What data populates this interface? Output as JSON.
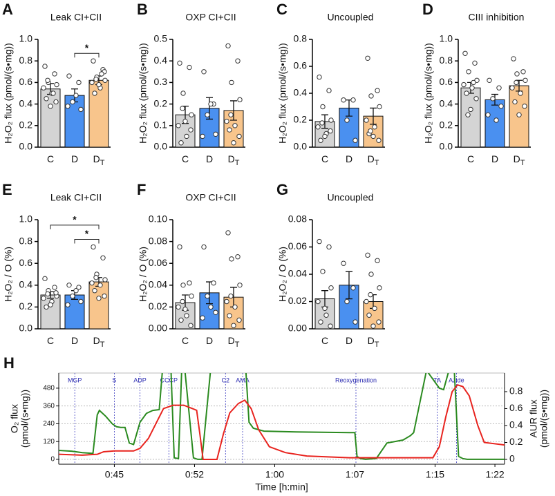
{
  "chart_data": [
    {
      "type": "bar",
      "panel": "A",
      "title": "Leak CI+CII",
      "ylabel": "H₂O₂ flux (pmol/(s•mg))",
      "categories": [
        "C",
        "D",
        "DT"
      ],
      "colors": [
        "#d4d4d4",
        "#4a90f0",
        "#f8c58c"
      ],
      "values": [
        0.54,
        0.48,
        0.62
      ],
      "errors": [
        0.05,
        0.06,
        0.04
      ],
      "points": [
        [
          0.75,
          0.68,
          0.6,
          0.58,
          0.55,
          0.5,
          0.45,
          0.42,
          0.38,
          0.62,
          0.5
        ],
        [
          0.66,
          0.6,
          0.42,
          0.35,
          0.38,
          0.48
        ],
        [
          0.8,
          0.72,
          0.65,
          0.62,
          0.6,
          0.55,
          0.5,
          0.7,
          0.58,
          0.63,
          0.68
        ]
      ],
      "comparisons": [
        {
          "pair": [
            "D",
            "DT"
          ],
          "label": "*"
        }
      ],
      "ylim": [
        0,
        1
      ],
      "yticks": [
        {
          "value": 0,
          "label": "0.0"
        },
        0.2,
        0.4,
        0.6,
        0.8,
        {
          "value": 1,
          "label": "1.0"
        }
      ]
    },
    {
      "type": "bar",
      "panel": "B",
      "title": "OXP CI+CII",
      "ylabel": "H₂O₂ flux (pmol/(s•mg))",
      "categories": [
        "C",
        "D",
        "DT"
      ],
      "colors": [
        "#d4d4d4",
        "#4a90f0",
        "#f8c58c"
      ],
      "values": [
        0.15,
        0.18,
        0.17
      ],
      "errors": [
        0.04,
        0.05,
        0.045
      ],
      "points": [
        [
          0.39,
          0.37,
          0.25,
          0.15,
          0.1,
          0.05,
          0.02,
          0.08,
          0.12,
          0.18
        ],
        [
          0.35,
          0.2,
          0.15,
          0.06,
          0.05,
          0.2
        ],
        [
          0.47,
          0.4,
          0.3,
          0.22,
          0.12,
          0.1,
          0.08,
          0.05,
          0.02,
          0.15
        ]
      ],
      "comparisons": [],
      "ylim": [
        0,
        0.5
      ],
      "yticks": [
        {
          "value": 0,
          "label": "0.0"
        },
        0.1,
        0.2,
        0.3,
        0.4,
        0.5
      ]
    },
    {
      "type": "bar",
      "panel": "C",
      "title": "Uncoupled",
      "ylabel": "H₂O₂ flux (pmol/(s•mg))",
      "categories": [
        "C",
        "D",
        "DT"
      ],
      "colors": [
        "#d4d4d4",
        "#4a90f0",
        "#f8c58c"
      ],
      "values": [
        0.19,
        0.29,
        0.23
      ],
      "errors": [
        0.05,
        0.06,
        0.06
      ],
      "points": [
        [
          0.52,
          0.42,
          0.3,
          0.2,
          0.15,
          0.1,
          0.05,
          0.12,
          0.08,
          0.18
        ],
        [
          0.35,
          0.35,
          0.2,
          0.05
        ],
        [
          0.66,
          0.42,
          0.38,
          0.3,
          0.2,
          0.15,
          0.1,
          0.05,
          0.08,
          0.12
        ]
      ],
      "comparisons": [],
      "ylim": [
        0,
        0.8
      ],
      "yticks": [
        {
          "value": 0,
          "label": "0.0"
        },
        0.2,
        0.4,
        0.6,
        0.8
      ]
    },
    {
      "type": "bar",
      "panel": "D",
      "title": "CIII inhibition",
      "ylabel": "H₂O₂ flux (pmol/(s•mg))",
      "categories": [
        "C",
        "D",
        "DT"
      ],
      "colors": [
        "#d4d4d4",
        "#4a90f0",
        "#f8c58c"
      ],
      "values": [
        0.55,
        0.44,
        0.57
      ],
      "errors": [
        0.05,
        0.05,
        0.05
      ],
      "points": [
        [
          0.87,
          0.78,
          0.7,
          0.62,
          0.58,
          0.55,
          0.5,
          0.45,
          0.35,
          0.3,
          0.6
        ],
        [
          0.62,
          0.55,
          0.45,
          0.38,
          0.3,
          0.25
        ],
        [
          0.82,
          0.7,
          0.68,
          0.62,
          0.55,
          0.5,
          0.42,
          0.38,
          0.3,
          0.6
        ]
      ],
      "comparisons": [],
      "ylim": [
        0,
        1
      ],
      "yticks": [
        {
          "value": 0,
          "label": "0.0"
        },
        0.2,
        0.4,
        0.6,
        0.8,
        {
          "value": 1,
          "label": "1.0"
        }
      ]
    },
    {
      "type": "bar",
      "panel": "E",
      "title": "Leak CI+CII",
      "ylabel": "H₂O₂ / O (%)",
      "categories": [
        "C",
        "D",
        "DT"
      ],
      "colors": [
        "#d4d4d4",
        "#4a90f0",
        "#f8c58c"
      ],
      "values": [
        0.31,
        0.31,
        0.43
      ],
      "errors": [
        0.03,
        0.04,
        0.04
      ],
      "points": [
        [
          0.46,
          0.38,
          0.35,
          0.3,
          0.28,
          0.25,
          0.2,
          0.33,
          0.22,
          0.32
        ],
        [
          0.4,
          0.38,
          0.3,
          0.25,
          0.22,
          0.35
        ],
        [
          0.75,
          0.65,
          0.5,
          0.45,
          0.42,
          0.4,
          0.35,
          0.3,
          0.28,
          0.47
        ]
      ],
      "comparisons": [
        {
          "pair": [
            "D",
            "DT"
          ],
          "label": "*"
        },
        {
          "pair": [
            "C",
            "DT"
          ],
          "label": "*"
        }
      ],
      "ylim": [
        0,
        1
      ],
      "yticks": [
        {
          "value": 0,
          "label": "0.0"
        },
        0.2,
        0.4,
        0.6,
        0.8,
        {
          "value": 1,
          "label": "1.0"
        }
      ]
    },
    {
      "type": "bar",
      "panel": "F",
      "title": "OXP CI+CII",
      "ylabel": "H₂O₂ / O (%)",
      "categories": [
        "C",
        "D",
        "DT"
      ],
      "colors": [
        "#d4d4d4",
        "#4a90f0",
        "#f8c58c"
      ],
      "values": [
        0.024,
        0.033,
        0.029
      ],
      "errors": [
        0.007,
        0.01,
        0.009
      ],
      "points": [
        [
          0.075,
          0.042,
          0.04,
          0.03,
          0.02,
          0.012,
          0.008,
          0.003,
          0.018,
          0.025
        ],
        [
          0.075,
          0.042,
          0.03,
          0.015,
          0.01,
          0.02
        ],
        [
          0.088,
          0.066,
          0.064,
          0.04,
          0.025,
          0.02,
          0.012,
          0.008,
          0.003,
          0.03
        ]
      ],
      "comparisons": [],
      "ylim": [
        0,
        0.1
      ],
      "yticks": [
        {
          "value": 0,
          "label": "0.00"
        },
        0.02,
        0.04,
        0.06,
        0.08,
        {
          "value": 0.1,
          "label": "0.10"
        }
      ]
    },
    {
      "type": "bar",
      "panel": "G",
      "title": "Uncoupled",
      "ylabel": "H₂O₂ / O (%)",
      "categories": [
        "C",
        "D",
        "DT"
      ],
      "colors": [
        "#d4d4d4",
        "#4a90f0",
        "#f8c58c"
      ],
      "values": [
        0.022,
        0.032,
        0.02
      ],
      "errors": [
        0.006,
        0.01,
        0.005
      ],
      "points": [
        [
          0.064,
          0.06,
          0.042,
          0.03,
          0.02,
          0.01,
          0.005,
          0.002,
          0.015
        ],
        [
          0.048,
          0.03,
          0.02,
          0.005
        ],
        [
          0.054,
          0.05,
          0.04,
          0.03,
          0.02,
          0.015,
          0.01,
          0.005,
          0.002,
          0.025
        ]
      ],
      "comparisons": [],
      "ylim": [
        0,
        0.08
      ],
      "yticks": [
        {
          "value": 0,
          "label": "0.00"
        },
        0.02,
        0.04,
        0.06,
        0.08
      ]
    },
    {
      "type": "line",
      "panel": "H",
      "xlabel": "Time [h:min]",
      "ylabel": [
        "O₂ flux",
        "(pmol/(s•mg))"
      ],
      "y2label": [
        "AUR flux",
        "(pmol/(s•mg))"
      ],
      "xlim": [
        39.8,
        81.5
      ],
      "xticks": [
        {
          "value": 45,
          "label": "0:45"
        },
        {
          "value": 52.5,
          "label": "0:52"
        },
        {
          "value": 60,
          "label": "1:00"
        },
        {
          "value": 67.5,
          "label": "1:07"
        },
        {
          "value": 75,
          "label": "1:15"
        },
        {
          "value": 80.6,
          "label": "1:22"
        }
      ],
      "ylim": [
        -33,
        582
      ],
      "yticks": [
        0,
        120,
        240,
        360,
        480
      ],
      "y2lim": [
        -0.057,
        1.02
      ],
      "y2ticks": [
        0,
        0.2,
        0.4,
        0.6,
        0.8
      ],
      "grid": true,
      "events": [
        {
          "label": "MGP",
          "x": 41.3
        },
        {
          "label": "S",
          "x": 45.0
        },
        {
          "label": "ADP",
          "x": 47.4
        },
        {
          "label": "CCCP",
          "x": 50.1
        },
        {
          "label": "C2",
          "x": 55.4
        },
        {
          "label": "AMA",
          "x": 57.0
        },
        {
          "label": "Reoxygenation",
          "x": 67.6
        },
        {
          "label": "TA",
          "x": 75.2
        },
        {
          "label": "Azide",
          "x": 77.0
        }
      ],
      "series": [
        {
          "color": "#2a8a1f",
          "x": [
            39.8,
            41,
            42,
            43,
            43.4,
            43.6,
            44.2,
            44.8,
            45.2,
            45.6,
            46,
            46.4,
            46.8,
            47.4,
            48,
            48.6,
            49.2,
            49.5,
            49.7,
            50.3,
            50.6,
            51,
            51.3,
            51.6,
            52.4,
            52.8,
            53.2,
            54,
            54.4,
            55,
            55.4,
            55.8,
            56,
            57.3,
            57.6,
            58,
            59,
            62,
            67,
            67.5,
            67.7,
            68,
            68.5,
            69.5,
            70.5,
            72,
            72.7,
            73,
            74.2,
            74.6,
            75.4,
            75.8,
            76.3,
            76.8,
            77.2,
            77.6,
            78,
            81.5
          ],
          "values": [
            60,
            55,
            45,
            40,
            300,
            330,
            290,
            240,
            220,
            215,
            215,
            110,
            100,
            250,
            310,
            330,
            335,
            600,
            600,
            600,
            10,
            5,
            600,
            600,
            10,
            0,
            0,
            600,
            600,
            600,
            600,
            600,
            600,
            600,
            250,
            210,
            190,
            185,
            180,
            180,
            20,
            5,
            0,
            5,
            110,
            130,
            160,
            180,
            600,
            560,
            480,
            470,
            600,
            600,
            20,
            5,
            0,
            0
          ]
        },
        {
          "color": "#e8231e",
          "axis": "y2",
          "x": [
            39.8,
            42,
            43.4,
            44,
            45,
            46.8,
            47.4,
            48.2,
            49,
            49.6,
            50.5,
            51.5,
            52.3,
            52.7,
            53,
            53.3,
            54.6,
            55.2,
            55.8,
            56.6,
            57.2,
            57.8,
            58.5,
            59.5,
            61,
            63,
            67,
            72,
            74.8,
            75.4,
            76,
            76.6,
            77.1,
            77.6,
            78.2,
            79,
            79.6,
            81.5
          ],
          "values": [
            0.06,
            0.05,
            0.06,
            0.09,
            0.1,
            0.1,
            0.13,
            0.25,
            0.45,
            0.6,
            0.64,
            0.64,
            0.6,
            0.58,
            0.3,
            0,
            0,
            0.3,
            0.55,
            0.66,
            0.7,
            0.6,
            0.35,
            0.15,
            0.08,
            0.04,
            0.02,
            0.02,
            0.02,
            0.15,
            0.5,
            0.8,
            0.88,
            0.86,
            0.75,
            0.4,
            0.2,
            0.17
          ]
        }
      ]
    }
  ]
}
